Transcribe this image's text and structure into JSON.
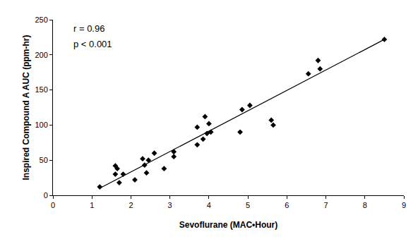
{
  "chart_data": {
    "type": "scatter",
    "x_label": "Sevoflurane (MAC•Hour)",
    "y_label": "Inspired Compound A AUC (ppm-hr)",
    "annotations": [
      "r = 0.96",
      "p < 0.001"
    ],
    "x": [
      1.2,
      1.6,
      1.6,
      1.65,
      1.7,
      1.8,
      2.1,
      2.3,
      2.35,
      2.4,
      2.45,
      2.6,
      2.85,
      3.1,
      3.1,
      3.7,
      3.7,
      3.85,
      3.9,
      3.95,
      4.0,
      4.05,
      4.8,
      4.85,
      5.05,
      5.6,
      5.65,
      6.55,
      6.8,
      6.85,
      8.5
    ],
    "values": [
      12,
      42,
      30,
      38,
      18,
      30,
      22,
      52,
      43,
      32,
      50,
      60,
      38,
      62,
      55,
      72,
      97,
      80,
      112,
      88,
      102,
      90,
      90,
      122,
      128,
      107,
      100,
      173,
      192,
      180,
      222
    ],
    "color": "#000000",
    "marker": "diamond",
    "fit": {
      "x": [
        1.2,
        8.5
      ],
      "values": [
        10,
        222
      ],
      "line_style": "solid",
      "color": "#000000"
    },
    "xlim": [
      0,
      9
    ],
    "xticks": [
      0,
      1,
      2,
      3,
      4,
      5,
      6,
      7,
      8,
      9
    ],
    "ylim": [
      0,
      250
    ],
    "yticks": [
      0,
      50,
      100,
      150,
      200,
      250
    ],
    "grid": false
  }
}
